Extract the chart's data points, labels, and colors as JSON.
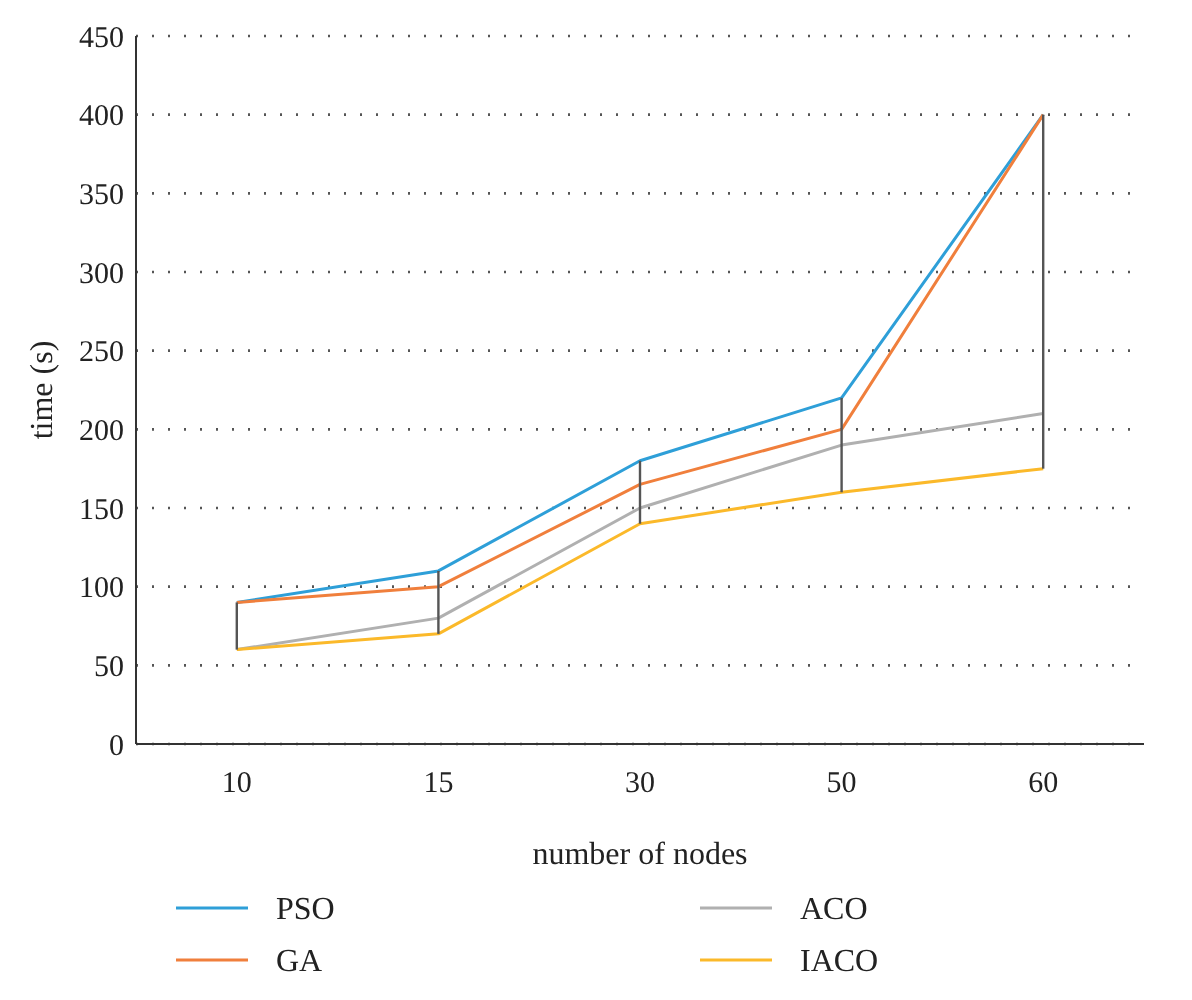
{
  "chart_data": {
    "type": "line",
    "xlabel": "number of nodes",
    "ylabel": "time (s)",
    "categories": [
      "10",
      "15",
      "30",
      "50",
      "60"
    ],
    "series": [
      {
        "name": "PSO",
        "color": "#2e9fd8",
        "values": [
          90,
          110,
          180,
          220,
          400
        ]
      },
      {
        "name": "GA",
        "color": "#f07f3c",
        "values": [
          90,
          100,
          165,
          200,
          400
        ]
      },
      {
        "name": "ACO",
        "color": "#b0b0b0",
        "values": [
          60,
          80,
          150,
          190,
          210
        ]
      },
      {
        "name": "IACO",
        "color": "#fbb92a",
        "values": [
          60,
          70,
          140,
          160,
          175
        ]
      }
    ],
    "ylim": [
      0,
      450
    ],
    "yticks": [
      0,
      50,
      100,
      150,
      200,
      250,
      300,
      350,
      400,
      450
    ],
    "grid": "y",
    "legend": "bottom",
    "marker": "none",
    "line_style": "solid"
  }
}
